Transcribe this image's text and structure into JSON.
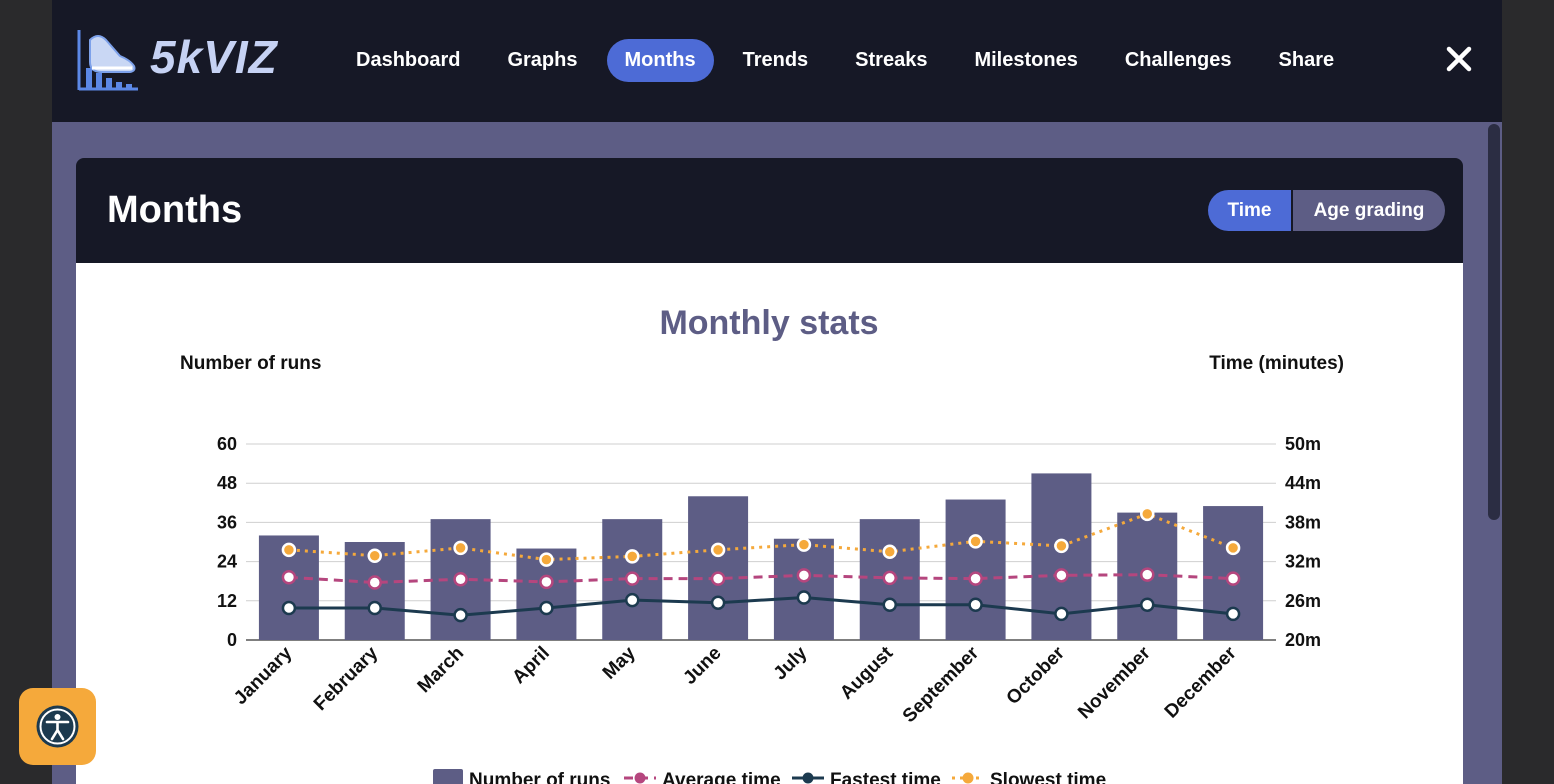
{
  "app": {
    "name": "5kVIZ"
  },
  "nav": {
    "items": [
      {
        "label": "Dashboard",
        "active": false
      },
      {
        "label": "Graphs",
        "active": false
      },
      {
        "label": "Months",
        "active": true
      },
      {
        "label": "Trends",
        "active": false
      },
      {
        "label": "Streaks",
        "active": false
      },
      {
        "label": "Milestones",
        "active": false
      },
      {
        "label": "Challenges",
        "active": false
      },
      {
        "label": "Share",
        "active": false
      }
    ],
    "close_icon": "close-icon"
  },
  "page": {
    "title": "Months",
    "toggle": {
      "time": "Time",
      "age_grading": "Age grading",
      "selected": "Time"
    }
  },
  "colors": {
    "accent": "#4d6bd6",
    "bar": "#5d5d85",
    "average": "#b5467e",
    "fastest": "#1c3a4f",
    "slowest": "#f5a93b",
    "header_bg": "#161826"
  },
  "chart_data": {
    "type": "bar",
    "title": "Monthly stats",
    "ylabel_left": "Number of runs",
    "ylabel_right": "Time (minutes)",
    "categories": [
      "January",
      "February",
      "March",
      "April",
      "May",
      "June",
      "July",
      "August",
      "September",
      "October",
      "November",
      "December"
    ],
    "ylim_left": [
      0,
      60
    ],
    "left_ticks": [
      "0",
      "12",
      "24",
      "36",
      "48",
      "60"
    ],
    "ylim_right": [
      20,
      50
    ],
    "right_ticks": [
      "20m",
      "26m",
      "32m",
      "38m",
      "44m",
      "50m"
    ],
    "series": [
      {
        "name": "Number of runs",
        "type": "bar",
        "axis": "left",
        "values": [
          32,
          30,
          37,
          28,
          37,
          44,
          31,
          37,
          43,
          51,
          39,
          41
        ]
      },
      {
        "name": "Average time",
        "type": "line",
        "axis": "right",
        "style": "dashed",
        "values": [
          29.6,
          28.8,
          29.3,
          28.9,
          29.4,
          29.4,
          29.9,
          29.5,
          29.4,
          29.9,
          30.0,
          29.4
        ]
      },
      {
        "name": "Fastest time",
        "type": "line",
        "axis": "right",
        "style": "solid",
        "values": [
          24.9,
          24.9,
          23.8,
          24.9,
          26.1,
          25.7,
          26.5,
          25.4,
          25.4,
          24.0,
          25.4,
          24.0
        ]
      },
      {
        "name": "Slowest time",
        "type": "line",
        "axis": "right",
        "style": "dotted",
        "values": [
          33.8,
          32.9,
          34.1,
          32.3,
          32.8,
          33.8,
          34.6,
          33.5,
          35.1,
          34.4,
          39.3,
          34.1
        ]
      }
    ],
    "legend_position": "bottom",
    "grid": true
  }
}
